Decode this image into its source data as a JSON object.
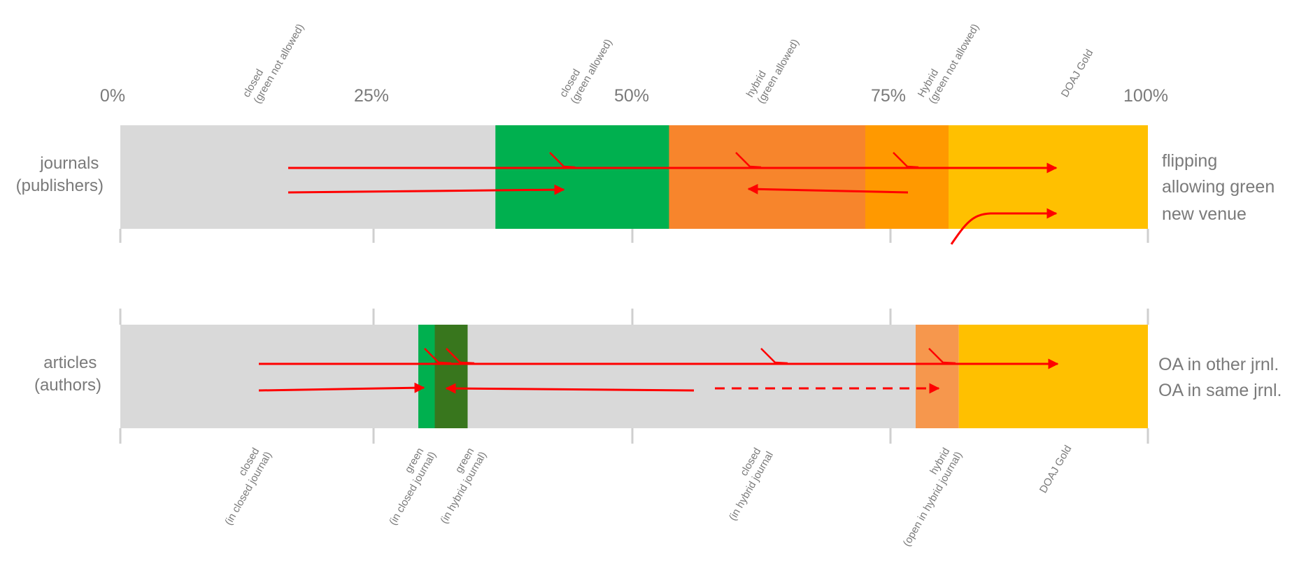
{
  "axis": {
    "ticks": [
      "0%",
      "25%",
      "50%",
      "75%",
      "100%"
    ]
  },
  "rows": {
    "journals": {
      "label_line1": "journals",
      "label_line2": "(publishers)",
      "segments": [
        {
          "name": "closed-green-not-allowed",
          "line1": "closed",
          "line2": "(green not allowed)",
          "start": 0,
          "end": 36.5,
          "color": "#d9d9d9"
        },
        {
          "name": "closed-green-allowed",
          "line1": "closed",
          "line2": "(green allowed)",
          "start": 36.5,
          "end": 53.4,
          "color": "#00b04f"
        },
        {
          "name": "hybrid-green-allowed",
          "line1": "hybrid",
          "line2": "(green allowed)",
          "start": 53.4,
          "end": 72.5,
          "color": "#f7852c"
        },
        {
          "name": "hybrid-green-not-allowed",
          "line1": "Hybrid",
          "line2": "(green not allowed)",
          "start": 72.5,
          "end": 80.6,
          "color": "#ff9900"
        },
        {
          "name": "doaj-gold",
          "line1": "DOAJ Gold",
          "line2": "",
          "start": 80.6,
          "end": 100,
          "color": "#ffc000"
        }
      ],
      "legend": [
        "flipping",
        "allowing green",
        "new venue"
      ]
    },
    "articles": {
      "label_line1": "articles",
      "label_line2": "(authors)",
      "segments": [
        {
          "name": "closed-in-closed-journal",
          "line1": "closed",
          "line2": "(in closed journal)",
          "start": 0,
          "end": 29.0,
          "color": "#d9d9d9"
        },
        {
          "name": "green-in-closed-journal",
          "line1": "green",
          "line2": "(in closed journal)",
          "start": 29.0,
          "end": 30.6,
          "color": "#00b04f"
        },
        {
          "name": "green-in-hybrid-journal",
          "line1": "green",
          "line2": "(in hybrid journal)",
          "start": 30.6,
          "end": 33.8,
          "color": "#38761d"
        },
        {
          "name": "closed-in-hybrid-journal",
          "line1": "closed",
          "line2": "(in hybrid journal",
          "start": 33.8,
          "end": 77.4,
          "color": "#d9d9d9"
        },
        {
          "name": "hybrid-open-in-hybrid-journal",
          "line1": "hybrid",
          "line2": "(open in hybrid journal)",
          "start": 77.4,
          "end": 81.6,
          "color": "#f6974d"
        },
        {
          "name": "doaj-gold-articles",
          "line1": "DOAJ Gold",
          "line2": "",
          "start": 81.6,
          "end": 100,
          "color": "#ffc000"
        }
      ],
      "legend": [
        "OA in other jrnl.",
        "OA in same jrnl."
      ]
    }
  },
  "colors": {
    "arrow": "#ff0000",
    "text": "#7a7a7a",
    "tick": "#cfcfcf"
  }
}
